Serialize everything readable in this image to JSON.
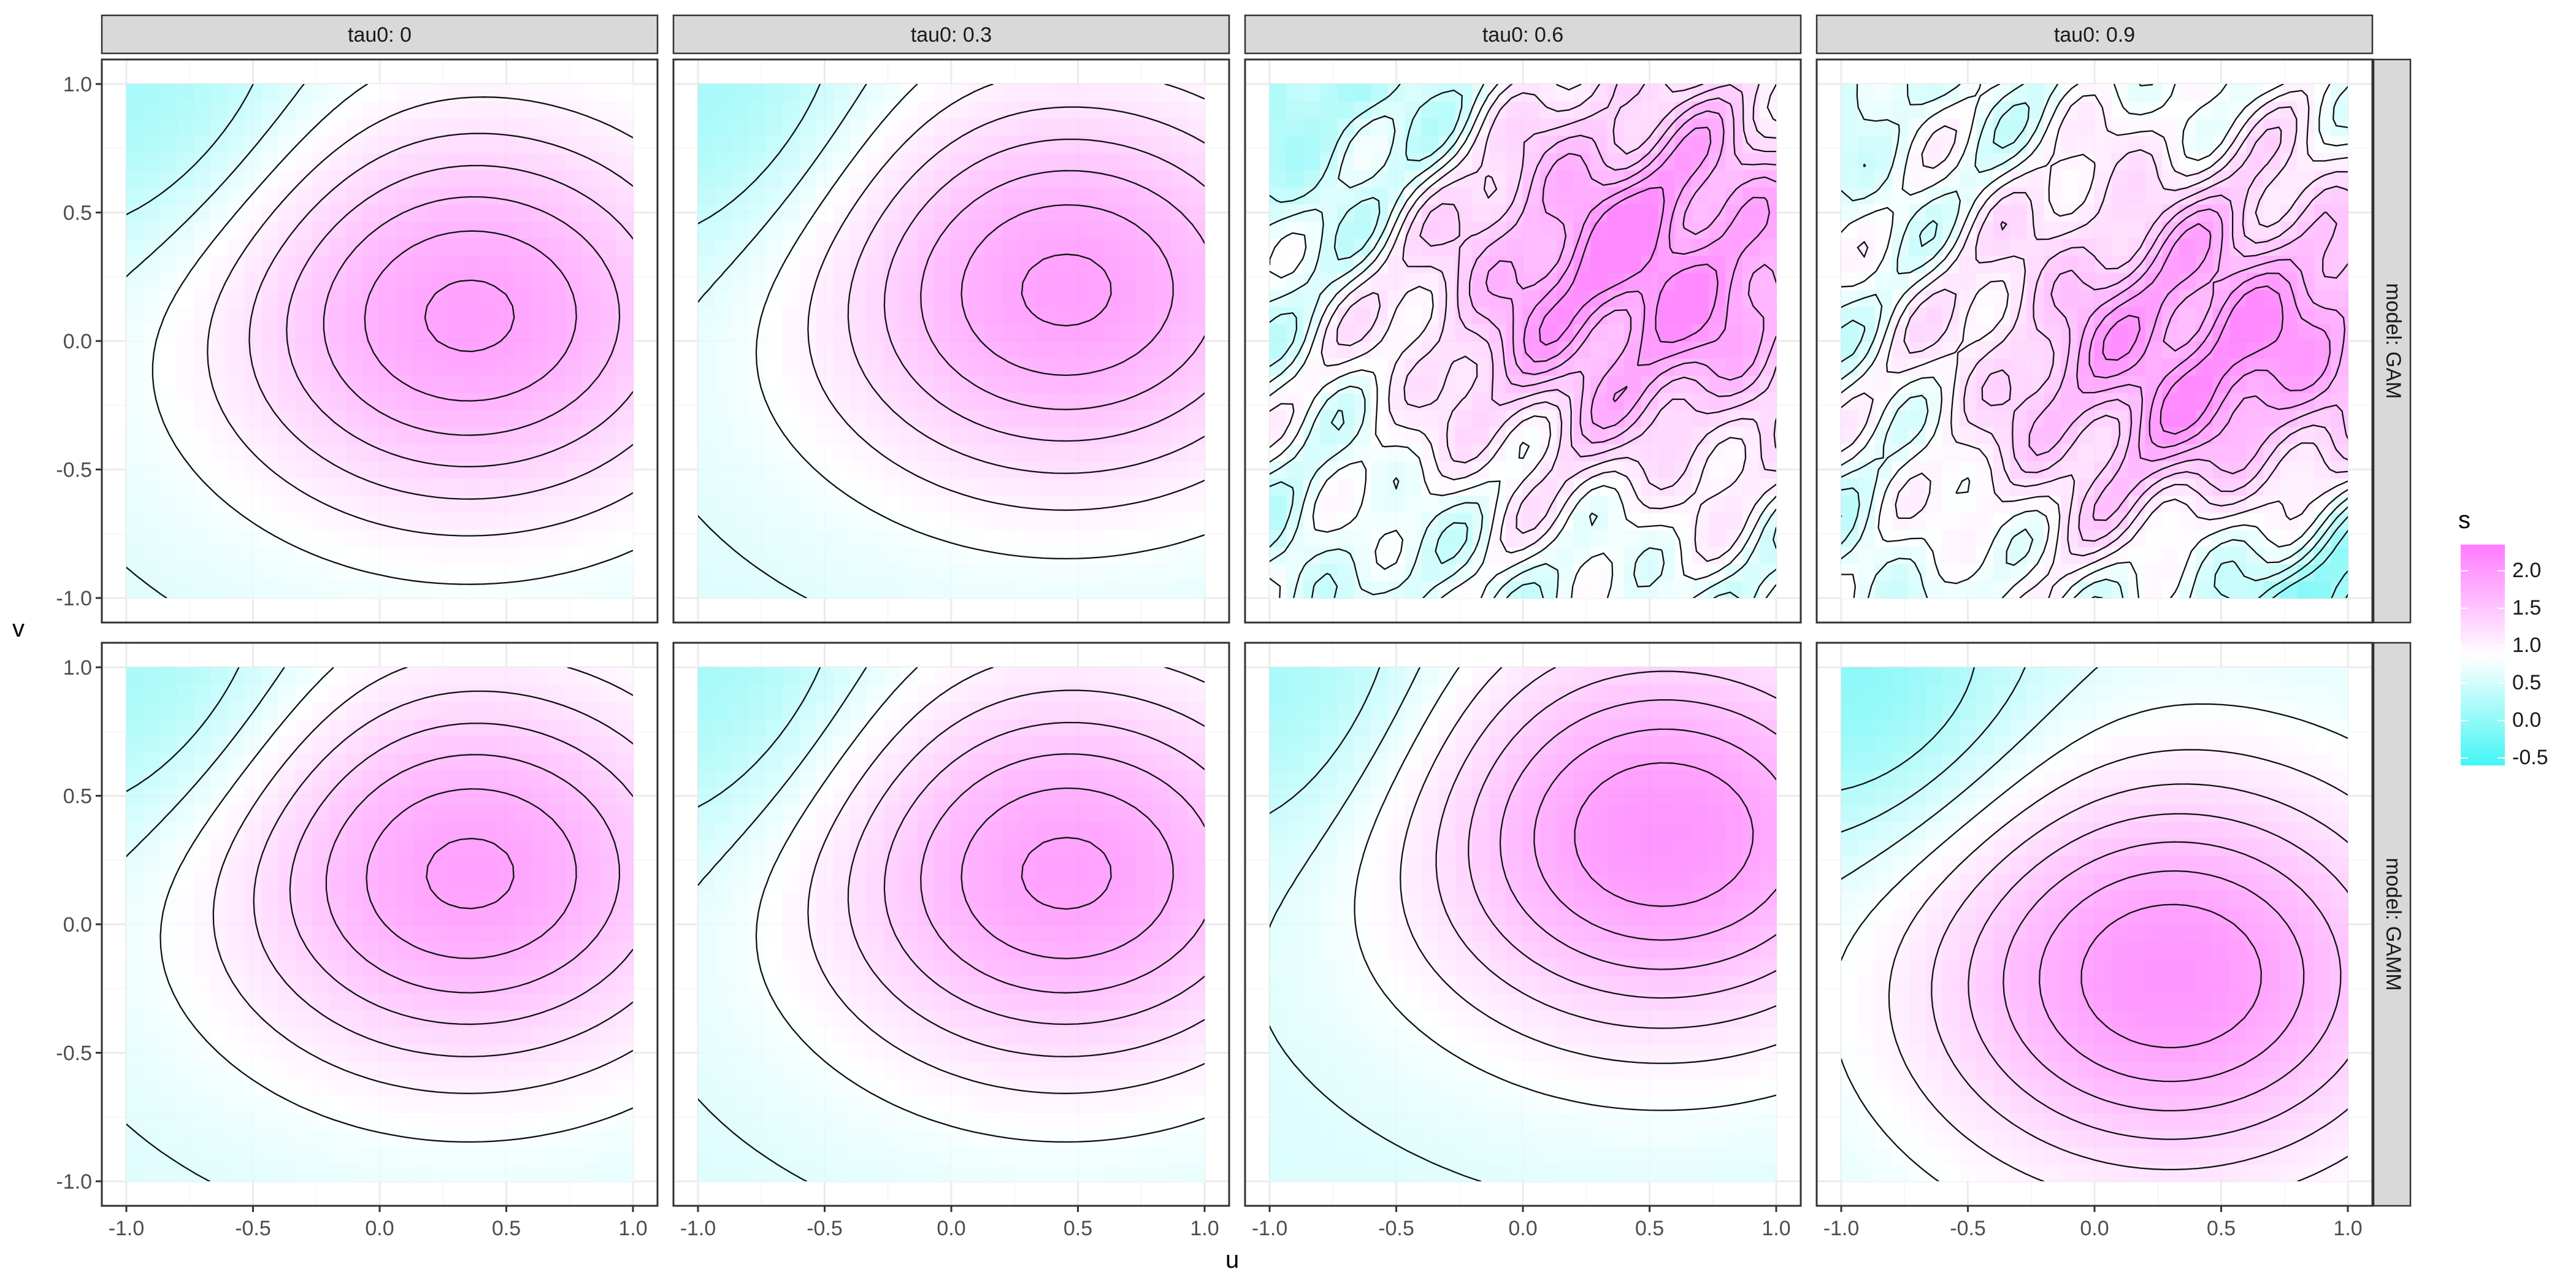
{
  "chart_data": {
    "type": "heatmap",
    "subtype": "faceted filled contour plot with contour lines",
    "xlabel": "u",
    "ylabel": "v",
    "xlim": [
      -1.0,
      1.0
    ],
    "ylim": [
      -1.0,
      1.0
    ],
    "x_ticks": [
      "-1.0",
      "-0.5",
      "0.0",
      "0.5",
      "1.0"
    ],
    "y_ticks": [
      "-1.0",
      "-0.5",
      "0.0",
      "0.5",
      "1.0"
    ],
    "grid": true,
    "facet_columns": [
      "tau0: 0",
      "tau0: 0.3",
      "tau0: 0.6",
      "tau0: 0.9"
    ],
    "facet_rows": [
      "model: GAM",
      "model: GAMM"
    ],
    "legend": {
      "title": "s",
      "placement": "right",
      "ticks": [
        "2.0",
        "1.5",
        "1.0",
        "0.5",
        "0.0",
        "-0.5"
      ],
      "range": [
        -0.6,
        2.35
      ],
      "colors": {
        "low": "#44f5f5",
        "mid": "#ffffff",
        "high": "#ff7aff"
      }
    },
    "panels": [
      {
        "column": "tau0: 0",
        "row": "model: GAM",
        "peak": {
          "u": 0.35,
          "v": 0.1,
          "s": 2.05
        },
        "trough": {
          "u": -0.95,
          "v": 0.95,
          "s": 0.3
        },
        "contour_levels": [
          0.4,
          0.6,
          0.8,
          1.0,
          1.2,
          1.4,
          1.6,
          1.8,
          2.0
        ]
      },
      {
        "column": "tau0: 0.3",
        "row": "model: GAM",
        "peak": {
          "u": 0.45,
          "v": 0.2,
          "s": 2.05
        },
        "trough": {
          "u": -0.95,
          "v": 0.95,
          "s": 0.3
        },
        "contour_levels": [
          0.4,
          0.6,
          0.8,
          1.0,
          1.2,
          1.4,
          1.6,
          1.8,
          2.0
        ]
      },
      {
        "column": "tau0: 0.6",
        "row": "model: GAM",
        "peak": {
          "u": 0.45,
          "v": 0.3,
          "s": 2.3
        },
        "trough": {
          "u": -0.6,
          "v": 0.9,
          "s": 0.2
        },
        "contour_levels": [
          0.4,
          0.6,
          0.8,
          1.0,
          1.2,
          1.4,
          1.6,
          1.8,
          2.0,
          2.2
        ]
      },
      {
        "column": "tau0: 0.9",
        "row": "model: GAM",
        "peak": {
          "u": 0.55,
          "v": -0.1,
          "s": 2.3
        },
        "trough": {
          "u": 0.97,
          "v": -0.97,
          "s": -0.5
        },
        "contour_levels": [
          0.0,
          0.2,
          0.4,
          0.6,
          0.8,
          1.0,
          1.2,
          1.4,
          1.6,
          1.8,
          2.0,
          2.2
        ]
      },
      {
        "column": "tau0: 0",
        "row": "model: GAMM",
        "peak": {
          "u": 0.35,
          "v": 0.2,
          "s": 2.05
        },
        "trough": {
          "u": -0.95,
          "v": 0.95,
          "s": 0.3
        },
        "contour_levels": [
          0.4,
          0.6,
          0.8,
          1.0,
          1.2,
          1.4,
          1.6,
          1.8,
          2.0
        ]
      },
      {
        "column": "tau0: 0.3",
        "row": "model: GAMM",
        "peak": {
          "u": 0.45,
          "v": 0.2,
          "s": 2.05
        },
        "trough": {
          "u": -0.95,
          "v": 0.95,
          "s": 0.3
        },
        "contour_levels": [
          0.4,
          0.6,
          0.8,
          1.0,
          1.2,
          1.4,
          1.6,
          1.8,
          2.0
        ]
      },
      {
        "column": "tau0: 0.6",
        "row": "model: GAMM",
        "peak": {
          "u": 0.55,
          "v": 0.35,
          "s": 2.2
        },
        "trough": {
          "u": -0.95,
          "v": 0.95,
          "s": 0.3
        },
        "contour_levels": [
          0.4,
          0.6,
          0.8,
          1.0,
          1.2,
          1.4,
          1.6,
          1.8,
          2.0,
          2.2
        ]
      },
      {
        "column": "tau0: 0.9",
        "row": "model: GAMM",
        "peak": {
          "u": 0.3,
          "v": -0.2,
          "s": 2.2
        },
        "trough": {
          "u": -0.95,
          "v": 0.95,
          "s": 0.0
        },
        "contour_levels": [
          0.2,
          0.4,
          0.6,
          0.8,
          1.0,
          1.2,
          1.4,
          1.6,
          1.8,
          2.0,
          2.2
        ]
      }
    ]
  }
}
